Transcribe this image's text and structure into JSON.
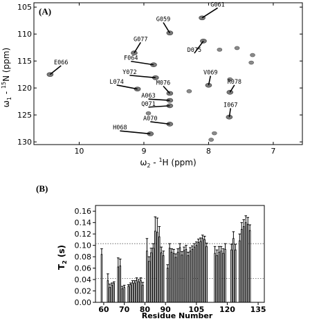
{
  "chart_data": [
    {
      "type": "scatter",
      "panel_label": "(A)",
      "xlabel_main": "ω",
      "xlabel_sub": "2",
      "xlabel_rest": " - ",
      "xlabel_sup": "1",
      "xlabel_tail": "H (ppm)",
      "ylabel_main": "ω",
      "ylabel_sub": "1",
      "ylabel_rest": " - ",
      "ylabel_sup": "15",
      "ylabel_tail": "N (ppm)",
      "xlim": [
        10.7,
        6.55
      ],
      "ylim": [
        130.5,
        104.2
      ],
      "x_ticks": [
        10,
        9,
        8,
        7
      ],
      "x_tick_labels": [
        "10",
        "9",
        "8",
        "7"
      ],
      "y_ticks": [
        105,
        110,
        115,
        120,
        125,
        130
      ],
      "y_tick_labels": [
        "105",
        "110",
        "115",
        "120",
        "125",
        "130"
      ],
      "labeled_peaks": [
        {
          "label": "G061",
          "x": 8.1,
          "y": 107.0,
          "lx": 7.86,
          "ly": 104.9
        },
        {
          "label": "G059",
          "x": 8.6,
          "y": 109.8,
          "lx": 8.7,
          "ly": 107.6
        },
        {
          "label": "D075",
          "x": 8.08,
          "y": 111.3,
          "lx": 8.22,
          "ly": 113.3
        },
        {
          "label": "G077",
          "x": 9.15,
          "y": 113.5,
          "lx": 9.05,
          "ly": 111.3
        },
        {
          "label": "E066",
          "x": 10.45,
          "y": 117.5,
          "lx": 10.28,
          "ly": 115.6
        },
        {
          "label": "F064",
          "x": 8.85,
          "y": 115.7,
          "lx": 9.2,
          "ly": 114.8
        },
        {
          "label": "Y072",
          "x": 8.82,
          "y": 118.1,
          "lx": 9.22,
          "ly": 117.4
        },
        {
          "label": "L074",
          "x": 9.1,
          "y": 120.2,
          "lx": 9.42,
          "ly": 119.2
        },
        {
          "label": "M076",
          "x": 8.6,
          "y": 121.0,
          "lx": 8.7,
          "ly": 119.4
        },
        {
          "label": "V069",
          "x": 8.0,
          "y": 119.5,
          "lx": 7.97,
          "ly": 117.5
        },
        {
          "label": "R078",
          "x": 7.67,
          "y": 120.8,
          "lx": 7.6,
          "ly": 119.2
        },
        {
          "label": "A063",
          "x": 8.6,
          "y": 122.3,
          "lx": 8.93,
          "ly": 121.8
        },
        {
          "label": "Q071",
          "x": 8.6,
          "y": 123.3,
          "lx": 8.93,
          "ly": 123.3
        },
        {
          "label": "I067",
          "x": 7.68,
          "y": 125.4,
          "lx": 7.66,
          "ly": 123.5
        },
        {
          "label": "A070",
          "x": 8.6,
          "y": 126.7,
          "lx": 8.9,
          "ly": 126.0
        },
        {
          "label": "H068",
          "x": 8.9,
          "y": 128.5,
          "lx": 9.37,
          "ly": 127.7
        }
      ],
      "unlabeled_peaks": [
        {
          "x": 8.93,
          "y": 124.7
        },
        {
          "x": 7.96,
          "y": 129.6
        },
        {
          "x": 8.3,
          "y": 120.6
        },
        {
          "x": 7.32,
          "y": 113.9
        },
        {
          "x": 7.56,
          "y": 112.6
        },
        {
          "x": 7.83,
          "y": 112.9
        },
        {
          "x": 7.34,
          "y": 115.3
        },
        {
          "x": 7.91,
          "y": 128.4
        },
        {
          "x": 7.67,
          "y": 118.4
        }
      ]
    },
    {
      "type": "bar",
      "panel_label": "(B)",
      "xlabel": "Residue Number",
      "ylabel_main": "T",
      "ylabel_sub": "2",
      "ylabel_tail": " (s)",
      "ylim": [
        0,
        0.17
      ],
      "xlim": [
        56,
        138
      ],
      "y_ticks": [
        0.0,
        0.02,
        0.04,
        0.06,
        0.08,
        0.1,
        0.12,
        0.14,
        0.16
      ],
      "y_tick_labels": [
        "0.00",
        "0.02",
        "0.04",
        "0.06",
        "0.08",
        "0.10",
        "0.12",
        "0.14",
        "0.16"
      ],
      "x_ticks": [
        60,
        70,
        80,
        90,
        105,
        120,
        135
      ],
      "x_tick_labels": [
        "60",
        "70",
        "80",
        "90",
        "105",
        "120",
        "135"
      ],
      "reference_lines": [
        0.103,
        0.042
      ],
      "x": [
        59,
        62,
        63,
        64,
        65,
        67,
        68,
        69,
        70,
        72,
        73,
        74,
        75,
        76,
        77,
        78,
        79,
        81,
        82,
        83,
        84,
        85,
        86,
        87,
        88,
        89,
        91,
        92,
        93,
        94,
        95,
        96,
        97,
        98,
        99,
        100,
        101,
        102,
        103,
        104,
        105,
        106,
        107,
        108,
        109,
        110,
        114,
        115,
        116,
        117,
        118,
        119,
        122,
        123,
        124,
        126,
        127,
        128,
        129,
        130,
        131
      ],
      "values": [
        0.084,
        0.038,
        0.026,
        0.03,
        0.033,
        0.062,
        0.064,
        0.024,
        0.026,
        0.028,
        0.031,
        0.034,
        0.034,
        0.038,
        0.036,
        0.038,
        0.03,
        0.09,
        0.072,
        0.087,
        0.095,
        0.125,
        0.123,
        0.115,
        0.087,
        0.082,
        0.06,
        0.095,
        0.088,
        0.086,
        0.079,
        0.088,
        0.096,
        0.083,
        0.091,
        0.093,
        0.082,
        0.09,
        0.093,
        0.097,
        0.1,
        0.105,
        0.107,
        0.112,
        0.11,
        0.098,
        0.086,
        0.082,
        0.088,
        0.09,
        0.086,
        0.093,
        0.092,
        0.112,
        0.092,
        0.108,
        0.128,
        0.133,
        0.14,
        0.137,
        0.126
      ],
      "errors": [
        0.01,
        0.012,
        0.006,
        0.004,
        0.003,
        0.016,
        0.012,
        0.004,
        0.004,
        0.003,
        0.003,
        0.004,
        0.004,
        0.005,
        0.004,
        0.005,
        0.005,
        0.022,
        0.008,
        0.008,
        0.008,
        0.025,
        0.025,
        0.018,
        0.01,
        0.008,
        0.006,
        0.008,
        0.006,
        0.007,
        0.006,
        0.006,
        0.007,
        0.006,
        0.006,
        0.007,
        0.006,
        0.006,
        0.006,
        0.006,
        0.006,
        0.006,
        0.006,
        0.006,
        0.006,
        0.006,
        0.012,
        0.01,
        0.01,
        0.008,
        0.008,
        0.01,
        0.01,
        0.012,
        0.01,
        0.012,
        0.012,
        0.012,
        0.012,
        0.012,
        0.01
      ]
    }
  ]
}
